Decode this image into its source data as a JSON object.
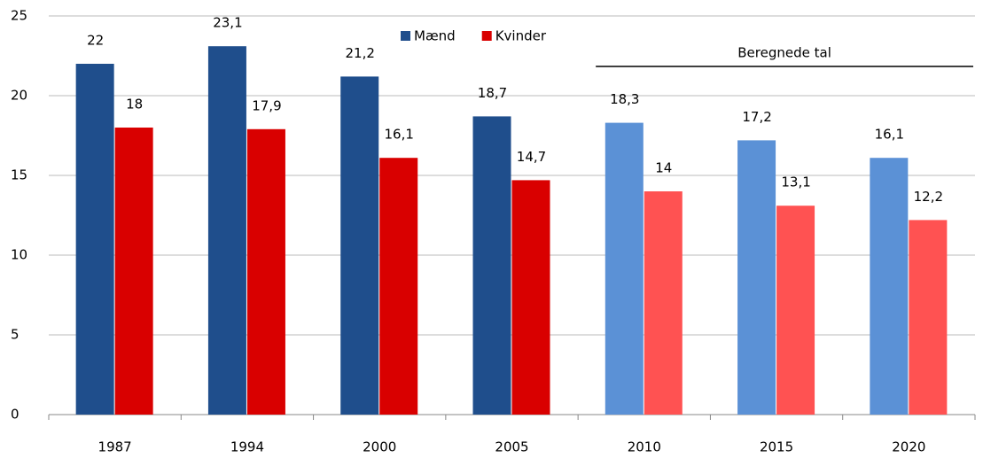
{
  "chart_data": {
    "type": "bar",
    "categories": [
      "1987",
      "1994",
      "2000",
      "2005",
      "2010",
      "2015",
      "2020"
    ],
    "series": [
      {
        "name": "Mænd",
        "color": "#1f4e8c",
        "colors": [
          "#1f4e8c",
          "#1f4e8c",
          "#1f4e8c",
          "#1f4e8c",
          "#5b91d6",
          "#5b91d6",
          "#5b91d6"
        ],
        "values": [
          22,
          23.1,
          21.2,
          18.7,
          18.3,
          17.2,
          16.1
        ],
        "value_labels": [
          "22",
          "23,1",
          "21,2",
          "18,7",
          "18,3",
          "17,2",
          "16,1"
        ]
      },
      {
        "name": "Kvinder",
        "color": "#d90000",
        "colors": [
          "#d90000",
          "#d90000",
          "#d90000",
          "#d90000",
          "#ff5252",
          "#ff5252",
          "#ff5252"
        ],
        "values": [
          18,
          17.9,
          16.1,
          14.7,
          14,
          13.1,
          12.2
        ],
        "value_labels": [
          "18",
          "17,9",
          "16,1",
          "14,7",
          "14",
          "13,1",
          "12,2"
        ]
      }
    ],
    "ylim": [
      0,
      25
    ],
    "yticks": [
      0,
      5,
      10,
      15,
      20,
      25
    ],
    "grid": true,
    "annotation": "Beregnede tal"
  }
}
